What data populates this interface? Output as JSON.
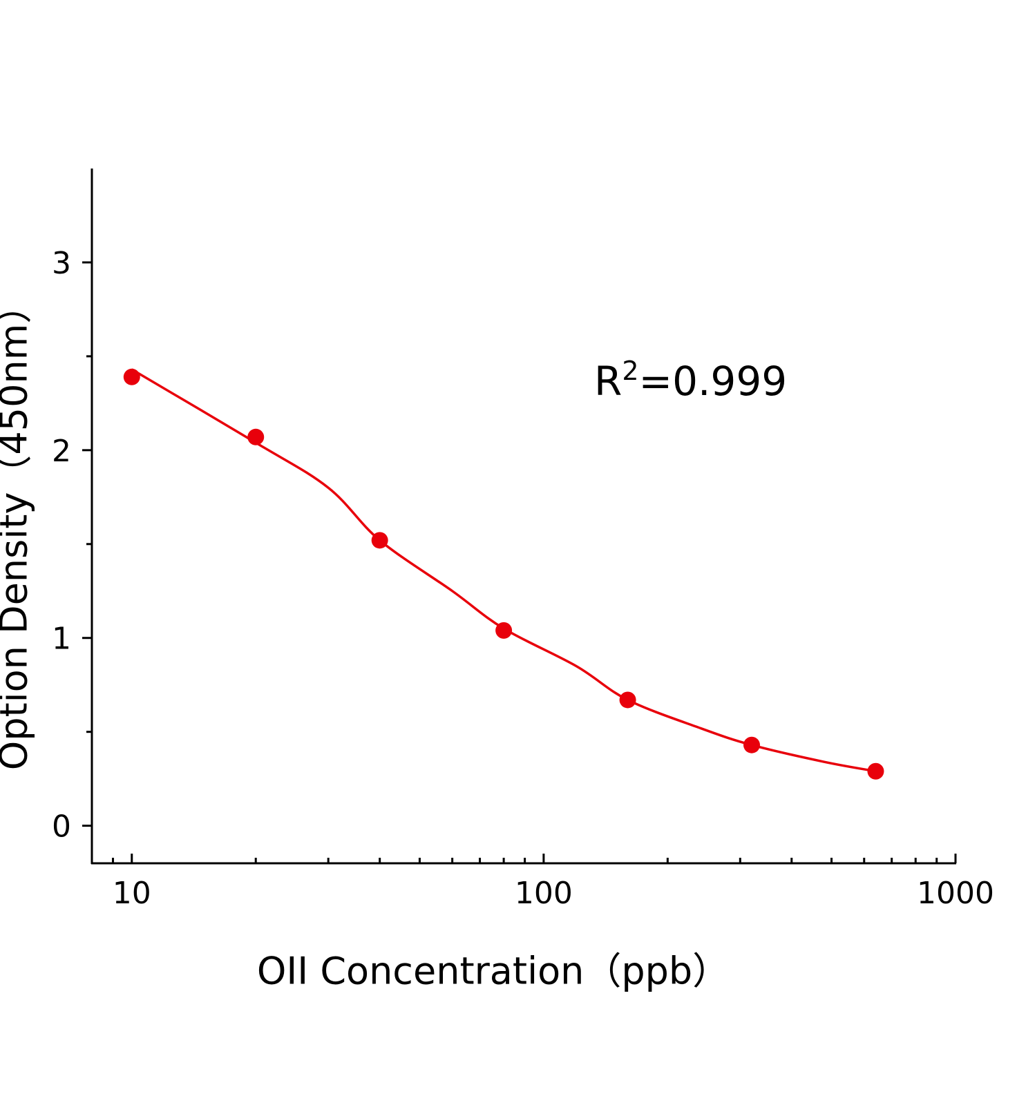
{
  "chart_data": {
    "type": "scatter",
    "x_label": "OII Concentration（ppb）",
    "y_label": "Option Density（450nm）",
    "annotation": {
      "base": "R",
      "superscript": "2",
      "text": "=0.999"
    },
    "xscale": "log",
    "xlim": [
      8,
      1000
    ],
    "xticks": [
      10,
      100,
      1000
    ],
    "xminorticks": [
      9,
      20,
      30,
      40,
      50,
      60,
      70,
      80,
      90,
      200,
      300,
      400,
      500,
      600,
      700,
      800,
      900
    ],
    "ylim": [
      -0.2,
      3.5
    ],
    "yticks": [
      0,
      1,
      2,
      3
    ],
    "yminorticks": [
      0.5,
      1.5,
      2.5
    ],
    "grid": false,
    "series": [
      {
        "type": "scatter",
        "color": "#e8000b",
        "x": [
          10,
          20,
          40,
          80,
          160,
          320,
          640
        ],
        "values": [
          2.39,
          2.07,
          1.52,
          1.04,
          0.67,
          0.43,
          0.29
        ]
      },
      {
        "type": "line",
        "color": "#e8000b",
        "x": [
          10,
          20,
          30,
          40,
          60,
          80,
          120,
          160,
          240,
          320,
          480,
          640
        ],
        "values": [
          2.43,
          2.04,
          1.8,
          1.52,
          1.25,
          1.05,
          0.85,
          0.67,
          0.52,
          0.43,
          0.34,
          0.29
        ]
      }
    ]
  }
}
